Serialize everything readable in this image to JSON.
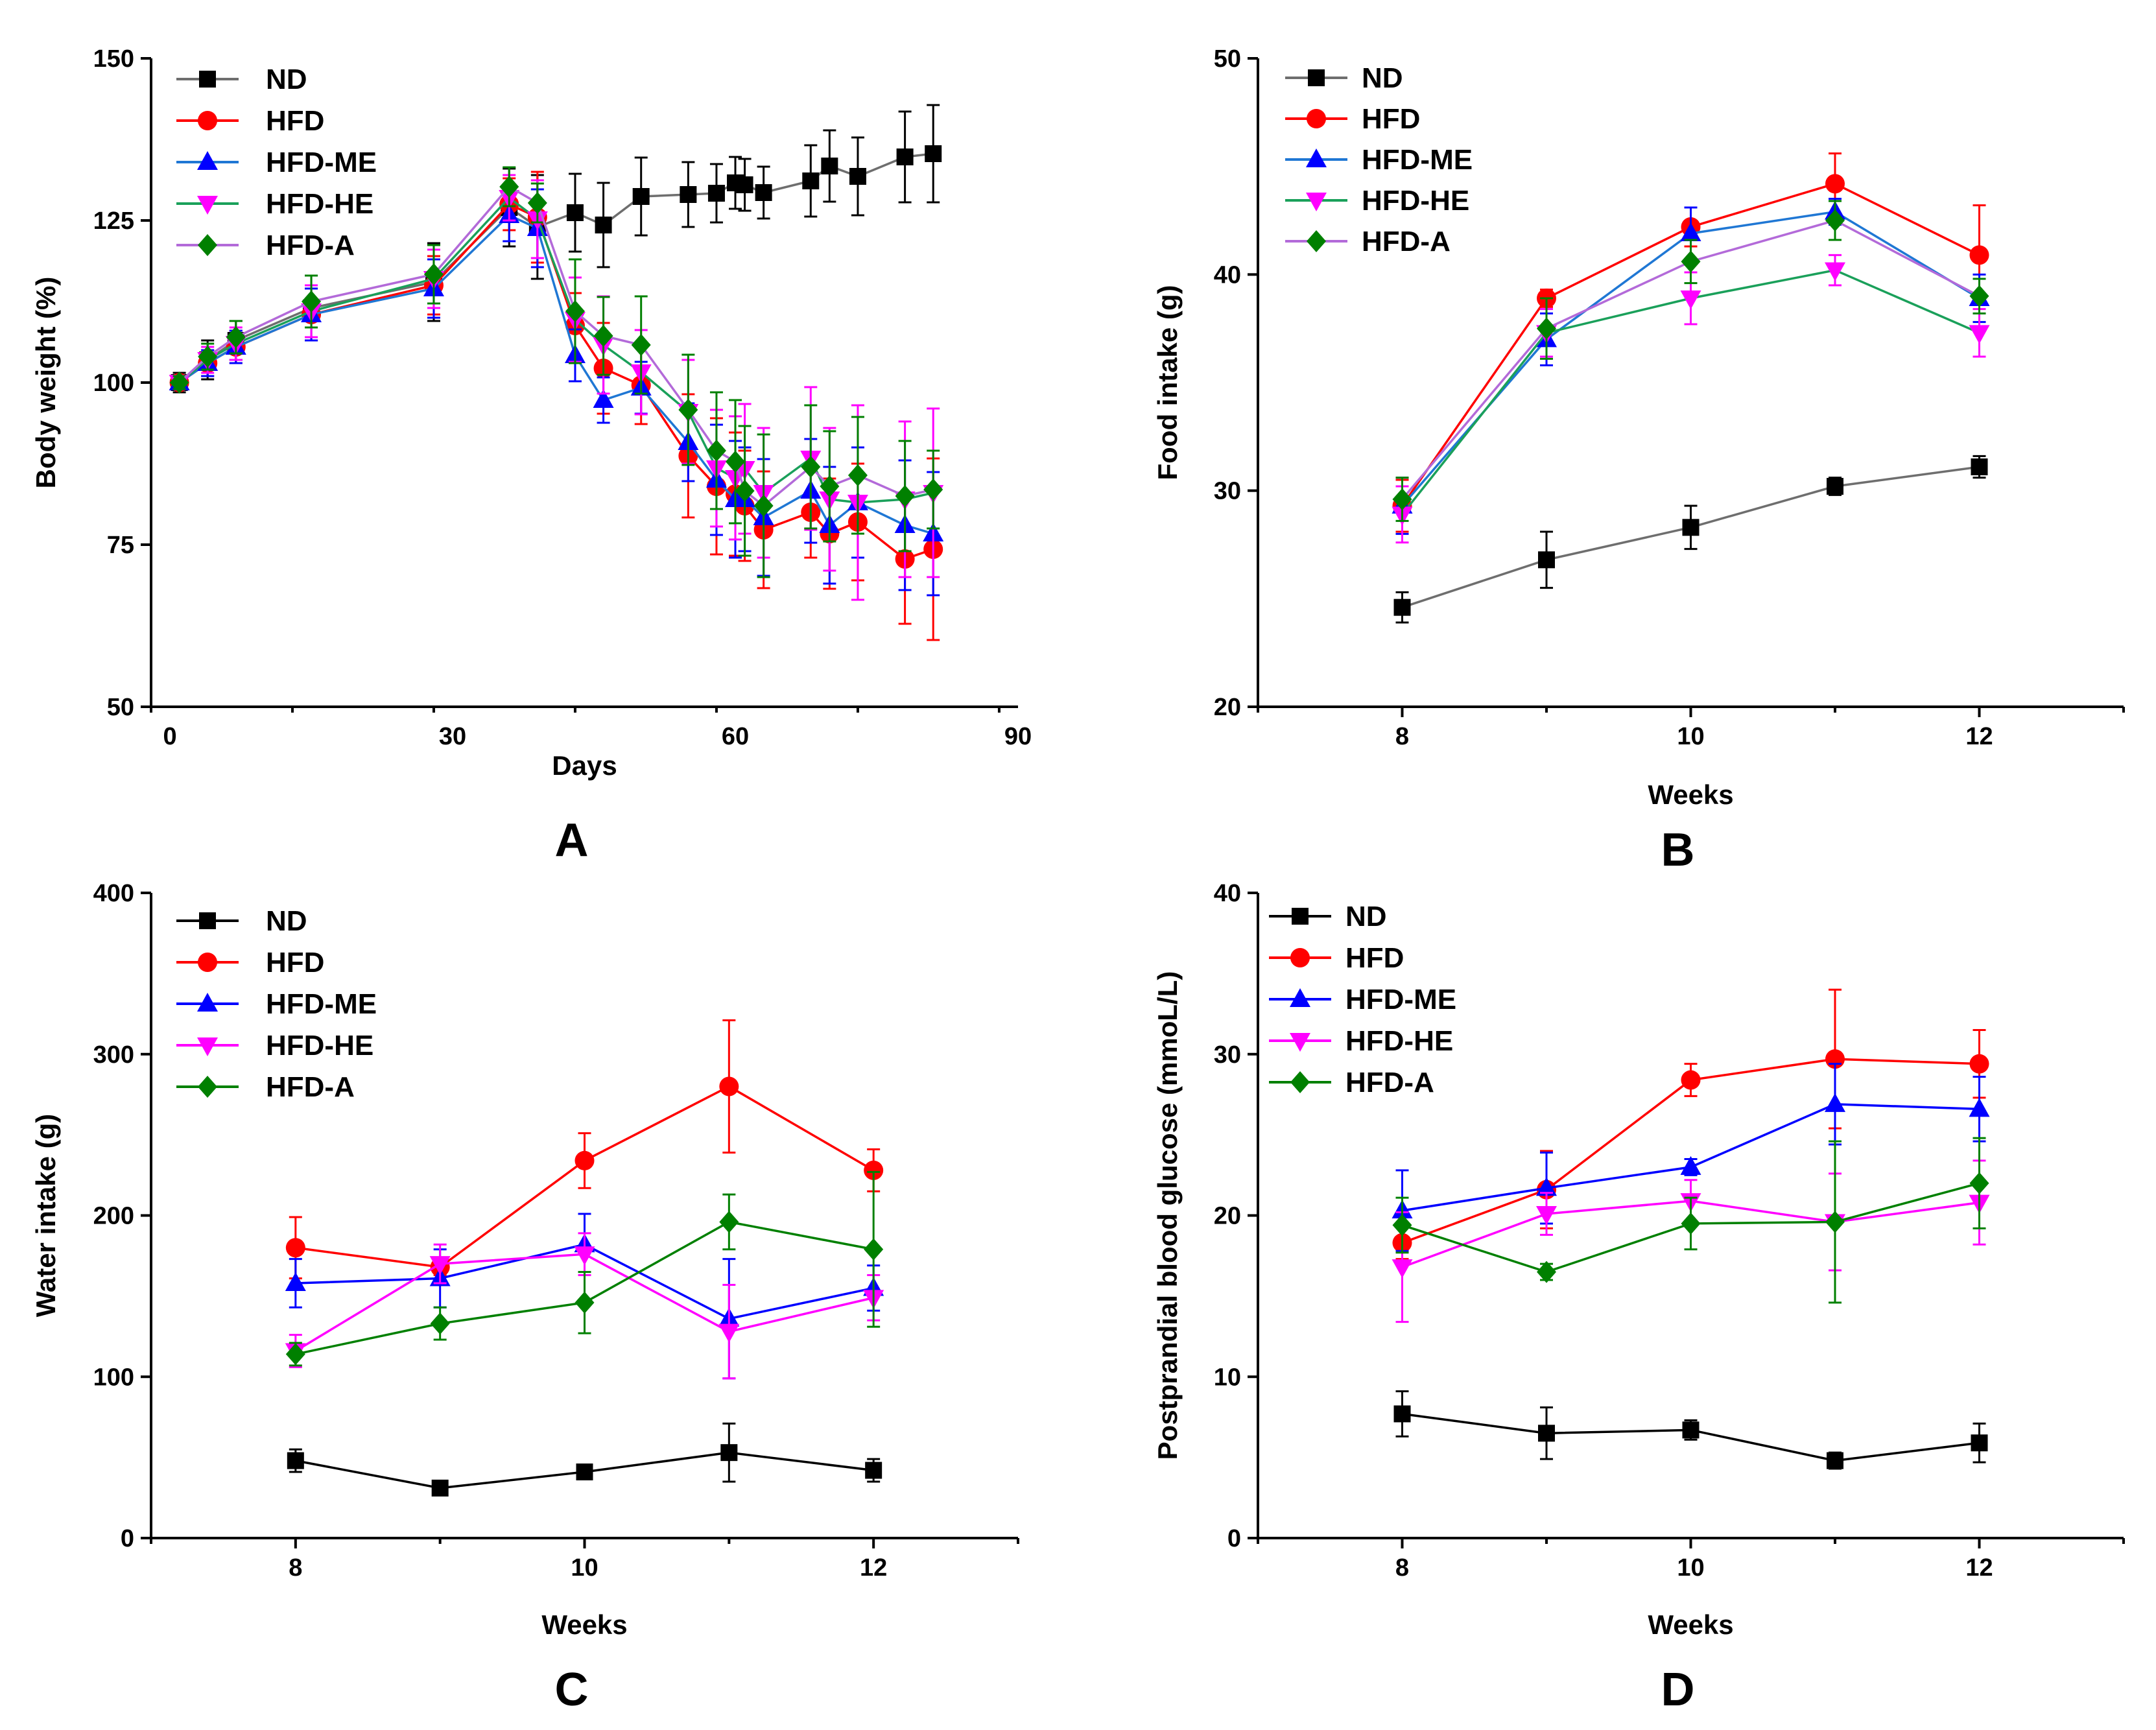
{
  "chart_data": [
    {
      "type": "line",
      "panel_label": "A",
      "xlabel": "Days",
      "ylabel": "Body weight (%)",
      "xlim": [
        -2,
        90
      ],
      "ylim": [
        50,
        150
      ],
      "xticks": [
        0,
        30,
        60,
        90
      ],
      "yticks": [
        50,
        75,
        100,
        125,
        150
      ],
      "legend_position": "top-left",
      "x": [
        1,
        4,
        7,
        15,
        28,
        36,
        39,
        43,
        46,
        50,
        55,
        58,
        60,
        61,
        63,
        68,
        70,
        73,
        78,
        81
      ],
      "series": [
        {
          "name": "ND",
          "color": "#000000",
          "line_color": "#6e6e6e",
          "marker": "square",
          "values": [
            100,
            103.5,
            106.5,
            111.5,
            115.5,
            127,
            124,
            126.2,
            124.3,
            128.7,
            129.0,
            129.2,
            130.8,
            130.5,
            129.3,
            131.1,
            133.4,
            131.8,
            134.8,
            135.3
          ],
          "errors": [
            1.5,
            3,
            3,
            5,
            6,
            6,
            8,
            6,
            6.5,
            6,
            5,
            4.5,
            4,
            4,
            4,
            5.5,
            5.5,
            6,
            7,
            7.5
          ]
        },
        {
          "name": "HFD",
          "color": "#ff0000",
          "line_color": "#ff0000",
          "marker": "circle",
          "values": [
            100,
            103,
            105.5,
            110.5,
            115,
            127.5,
            125.5,
            108.8,
            102.2,
            99.6,
            88.7,
            84.0,
            82.8,
            81.0,
            77.3,
            80.0,
            76.7,
            78.5,
            72.8,
            74.3
          ],
          "errors": [
            1,
            2,
            2.5,
            4,
            4.5,
            4,
            7,
            5,
            7,
            6,
            9.5,
            10.5,
            9.5,
            8.5,
            9,
            7,
            8.5,
            9,
            10,
            14
          ]
        },
        {
          "name": "HFD-ME",
          "color": "#0000ff",
          "line_color": "#1f77d4",
          "marker": "triangle-up",
          "values": [
            100,
            103,
            105.5,
            110.5,
            114.5,
            125.8,
            123.8,
            104.2,
            97.3,
            99.2,
            90.8,
            85.0,
            82.0,
            82.0,
            79.2,
            83.3,
            78.0,
            81.5,
            78.0,
            76.7
          ],
          "errors": [
            1,
            2,
            2.5,
            4,
            4.5,
            4,
            6,
            4,
            3.5,
            4,
            6,
            8.5,
            9,
            8,
            9,
            8,
            9,
            8.5,
            10,
            9.5
          ]
        },
        {
          "name": "HFD-HE",
          "color": "#ff00ff",
          "line_color": "#1aa05a",
          "marker": "triangle-down",
          "values": [
            100,
            103.5,
            106,
            111,
            116,
            128.5,
            125.2,
            109.7,
            105.8,
            101.6,
            95.5,
            86.8,
            85.3,
            86.7,
            83.0,
            88.3,
            82.0,
            81.5,
            82.0,
            83.0
          ],
          "errors": [
            1,
            2,
            2.5,
            4,
            4.5,
            3.5,
            6,
            6.5,
            7.5,
            6.5,
            8,
            9,
            9.5,
            10,
            10,
            11,
            11,
            15,
            12,
            13
          ]
        },
        {
          "name": "HFD-A",
          "color": "#008000",
          "line_color": "#b36ad9",
          "marker": "diamond",
          "values": [
            100,
            104,
            107,
            112.5,
            116.7,
            130.2,
            127.7,
            111.0,
            107.2,
            105.8,
            95.8,
            89.5,
            87.8,
            83.3,
            81.0,
            87.0,
            84.0,
            85.7,
            82.5,
            83.5
          ],
          "errors": [
            1,
            2,
            2.5,
            4,
            4.5,
            3,
            3,
            8,
            6,
            7.5,
            8.5,
            9,
            9.5,
            10,
            11,
            9.5,
            8.5,
            9,
            8.5,
            6
          ]
        }
      ]
    },
    {
      "type": "line",
      "panel_label": "B",
      "xlabel": "Weeks",
      "ylabel": "Food intake (g)",
      "xlim": [
        7,
        13
      ],
      "ylim": [
        20,
        50
      ],
      "xticks": [
        8,
        10,
        12
      ],
      "yticks": [
        20,
        30,
        40,
        50
      ],
      "legend_position": "top-left",
      "x": [
        8,
        9,
        10,
        11,
        12
      ],
      "series": [
        {
          "name": "ND",
          "color": "#000000",
          "line_color": "#6e6e6e",
          "marker": "square",
          "values": [
            24.6,
            26.8,
            28.3,
            30.2,
            31.1
          ],
          "errors": [
            0.7,
            1.3,
            1.0,
            0.4,
            0.5
          ]
        },
        {
          "name": "HFD",
          "color": "#ff0000",
          "line_color": "#ff0000",
          "marker": "circle",
          "values": [
            29.3,
            38.9,
            42.2,
            44.2,
            40.9
          ],
          "errors": [
            1.2,
            0.4,
            0.9,
            1.4,
            2.3
          ]
        },
        {
          "name": "HFD-ME",
          "color": "#0000ff",
          "line_color": "#1f77d4",
          "marker": "triangle-up",
          "values": [
            29.3,
            37.0,
            41.9,
            42.9,
            38.9
          ],
          "errors": [
            1.3,
            1.2,
            1.2,
            0.6,
            1.1
          ]
        },
        {
          "name": "HFD-HE",
          "color": "#ff00ff",
          "line_color": "#1aa05a",
          "marker": "triangle-down",
          "values": [
            28.9,
            37.3,
            38.9,
            40.2,
            37.3
          ],
          "errors": [
            1.3,
            1.1,
            1.2,
            0.7,
            1.1
          ]
        },
        {
          "name": "HFD-A",
          "color": "#008000",
          "line_color": "#b36ad9",
          "marker": "diamond",
          "values": [
            29.6,
            37.5,
            40.6,
            42.5,
            39.0
          ],
          "errors": [
            1.0,
            1.4,
            1.0,
            0.9,
            0.8
          ]
        }
      ]
    },
    {
      "type": "line",
      "panel_label": "C",
      "xlabel": "Weeks",
      "ylabel": "Water intake (g)",
      "xlim": [
        7,
        13
      ],
      "ylim": [
        0,
        400
      ],
      "xticks": [
        8,
        10,
        12
      ],
      "yticks": [
        0,
        100,
        200,
        300,
        400
      ],
      "legend_position": "top-left",
      "x": [
        8,
        9,
        10,
        11,
        12
      ],
      "series": [
        {
          "name": "ND",
          "color": "#000000",
          "line_color": "#000000",
          "marker": "square",
          "values": [
            48,
            31,
            41,
            53,
            42
          ],
          "errors": [
            7,
            3,
            4,
            18,
            7
          ]
        },
        {
          "name": "HFD",
          "color": "#ff0000",
          "line_color": "#ff0000",
          "marker": "circle",
          "values": [
            180,
            168,
            234,
            280,
            228
          ],
          "errors": [
            19,
            5,
            17,
            41,
            13
          ]
        },
        {
          "name": "HFD-ME",
          "color": "#0000ff",
          "line_color": "#0000ff",
          "marker": "triangle-up",
          "values": [
            158,
            161,
            182,
            136,
            155
          ],
          "errors": [
            15,
            18,
            19,
            37,
            14
          ]
        },
        {
          "name": "HFD-HE",
          "color": "#ff00ff",
          "line_color": "#ff00ff",
          "marker": "triangle-down",
          "values": [
            116,
            170,
            176,
            128,
            149
          ],
          "errors": [
            10,
            12,
            13,
            29,
            14
          ]
        },
        {
          "name": "HFD-A",
          "color": "#008000",
          "line_color": "#008000",
          "marker": "diamond",
          "values": [
            114,
            133,
            146,
            196,
            179
          ],
          "errors": [
            7,
            10,
            19,
            17,
            48
          ]
        }
      ]
    },
    {
      "type": "line",
      "panel_label": "D",
      "xlabel": "Weeks",
      "ylabel": "Postprandial blood glucose (mmoL/L)",
      "xlim": [
        7,
        13
      ],
      "ylim": [
        0,
        40
      ],
      "xticks": [
        8,
        10,
        12
      ],
      "yticks": [
        0,
        10,
        20,
        30,
        40
      ],
      "legend_position": "top-left",
      "x": [
        8,
        9,
        10,
        11,
        12
      ],
      "series": [
        {
          "name": "ND",
          "color": "#000000",
          "line_color": "#000000",
          "marker": "square",
          "values": [
            7.7,
            6.5,
            6.7,
            4.8,
            5.9
          ],
          "errors": [
            1.4,
            1.6,
            0.6,
            0.5,
            1.2
          ]
        },
        {
          "name": "HFD",
          "color": "#ff0000",
          "line_color": "#ff0000",
          "marker": "circle",
          "values": [
            18.3,
            21.6,
            28.4,
            29.7,
            29.4
          ],
          "errors": [
            1.0,
            2.4,
            1.0,
            4.3,
            2.1
          ]
        },
        {
          "name": "HFD-ME",
          "color": "#0000ff",
          "line_color": "#0000ff",
          "marker": "triangle-up",
          "values": [
            20.3,
            21.7,
            23.0,
            26.9,
            26.6
          ],
          "errors": [
            2.5,
            2.2,
            0.5,
            2.5,
            2.0
          ]
        },
        {
          "name": "HFD-HE",
          "color": "#ff00ff",
          "line_color": "#ff00ff",
          "marker": "triangle-down",
          "values": [
            16.8,
            20.1,
            20.9,
            19.6,
            20.8
          ],
          "errors": [
            3.4,
            1.3,
            1.3,
            3.0,
            2.6
          ]
        },
        {
          "name": "HFD-A",
          "color": "#008000",
          "line_color": "#008000",
          "marker": "diamond",
          "values": [
            19.4,
            16.5,
            19.5,
            19.6,
            22.0
          ],
          "errors": [
            1.7,
            0.5,
            1.6,
            5.0,
            2.8
          ]
        }
      ]
    }
  ]
}
